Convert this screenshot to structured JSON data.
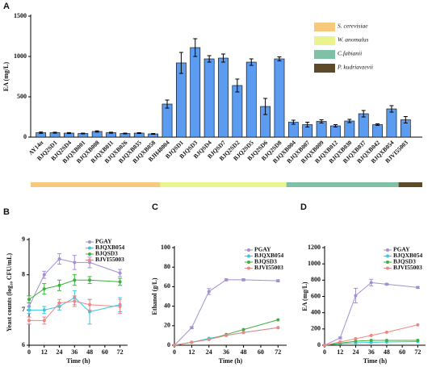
{
  "chart_data": [
    {
      "type": "bar",
      "label": "A",
      "ylabel": "EA (mg/L)",
      "color": "#5b9bf0",
      "categories": [
        "AY14α",
        "BJQ2SD1",
        "BJQ2SD4",
        "BJQXB001",
        "BJQXB008",
        "BJQXB011",
        "BJQXB026",
        "BJQXB035",
        "BJQXB058",
        "BJH48004",
        "BJQSD1",
        "BJQSD3",
        "BJQSD4",
        "BJQSD7",
        "BJQ2SD2",
        "BJQ2SD5",
        "BJQ2SD6",
        "BJQ2SD8",
        "BJQXB004",
        "BJQXB007",
        "BJQXB009",
        "BJQXB012",
        "BJQXB030",
        "BJQXB037",
        "BJQXB042",
        "BJQXB054",
        "BJVI55003"
      ],
      "values": [
        55,
        55,
        50,
        45,
        70,
        55,
        45,
        50,
        40,
        410,
        920,
        1110,
        970,
        980,
        640,
        930,
        380,
        970,
        185,
        155,
        195,
        140,
        200,
        290,
        155,
        350,
        215
      ],
      "errors": [
        8,
        6,
        6,
        5,
        8,
        6,
        5,
        5,
        5,
        50,
        130,
        110,
        40,
        50,
        80,
        40,
        100,
        25,
        25,
        30,
        20,
        15,
        20,
        40,
        10,
        40,
        40
      ],
      "ylim": [
        0,
        1500
      ],
      "yticks": [
        0,
        500,
        1000,
        1500
      ],
      "groups": [
        {
          "name": "S. cerevisiae",
          "color": "#f7c97c",
          "count": 9
        },
        {
          "name": "W. anomalus",
          "color": "#eaf48e",
          "count": 9
        },
        {
          "name": "C.fabianii",
          "color": "#7fc0a6",
          "count": 8
        },
        {
          "name": "P. kudriavzevii",
          "color": "#5c4a28",
          "count": 1
        }
      ]
    },
    {
      "type": "line",
      "label": "B",
      "ylabel": "Yeast counts (log₁₀ CFU/mL)",
      "xlabel": "Time (h)",
      "x": [
        0,
        12,
        24,
        36,
        48,
        72
      ],
      "xlim": [
        0,
        78
      ],
      "xticks": [
        0,
        12,
        24,
        36,
        48,
        60,
        72
      ],
      "ylim": [
        6,
        9
      ],
      "yticks": [
        6,
        7,
        8,
        9
      ],
      "series": [
        {
          "name": "PGAY",
          "color": "#a48fd2",
          "values": [
            7.1,
            8.0,
            8.45,
            8.35,
            8.35,
            8.05
          ],
          "errors": [
            0.1,
            0.1,
            0.15,
            0.2,
            0.15,
            0.1
          ]
        },
        {
          "name": "BJQXB054",
          "color": "#3cc6e2",
          "values": [
            7.0,
            7.0,
            7.1,
            7.35,
            6.95,
            7.15
          ],
          "errors": [
            0.1,
            0.1,
            0.1,
            0.2,
            0.35,
            0.2
          ]
        },
        {
          "name": "BJQSD3",
          "color": "#3bb33b",
          "values": [
            7.3,
            7.6,
            7.7,
            7.85,
            7.85,
            7.8
          ],
          "errors": [
            0.1,
            0.15,
            0.15,
            0.15,
            0.1,
            0.1
          ]
        },
        {
          "name": "BJVI55003",
          "color": "#f08585",
          "values": [
            6.7,
            6.7,
            7.2,
            7.25,
            7.15,
            7.1
          ],
          "errors": [
            0.1,
            0.1,
            0.1,
            0.15,
            0.15,
            0.2
          ]
        }
      ]
    },
    {
      "type": "line",
      "label": "C",
      "ylabel": "Ethanol (g/L)",
      "xlabel": "Time (h)",
      "x": [
        0,
        12,
        24,
        36,
        48,
        72
      ],
      "xlim": [
        0,
        78
      ],
      "xticks": [
        0,
        12,
        24,
        36,
        48,
        60,
        72
      ],
      "ylim": [
        0,
        100
      ],
      "yticks": [
        0,
        20,
        40,
        60,
        80,
        100
      ],
      "series": [
        {
          "name": "PGAY",
          "color": "#a48fd2",
          "values": [
            0,
            18,
            55,
            67,
            67,
            66
          ],
          "errors": [
            0,
            1,
            3,
            1,
            1,
            1
          ]
        },
        {
          "name": "BJQXB054",
          "color": "#3cc6e2",
          "values": [
            0,
            3,
            7,
            10,
            13,
            18
          ],
          "errors": [
            0,
            0,
            0,
            0,
            0,
            0
          ]
        },
        {
          "name": "BJQSD3",
          "color": "#3bb33b",
          "values": [
            0,
            3,
            6,
            11,
            16,
            26
          ],
          "errors": [
            0,
            0,
            0,
            0,
            0,
            0
          ]
        },
        {
          "name": "BJVI55003",
          "color": "#f08585",
          "values": [
            0,
            3,
            6,
            10,
            13,
            18
          ],
          "errors": [
            0,
            0,
            0,
            0,
            0,
            0
          ]
        }
      ]
    },
    {
      "type": "line",
      "label": "D",
      "ylabel": "EA (mg/L)",
      "xlabel": "Time (h)",
      "x": [
        0,
        12,
        24,
        36,
        48,
        72
      ],
      "xlim": [
        0,
        78
      ],
      "xticks": [
        0,
        12,
        24,
        36,
        48,
        60,
        72
      ],
      "ylim": [
        0,
        1200
      ],
      "yticks": [
        0,
        200,
        400,
        600,
        800,
        1000,
        1200
      ],
      "series": [
        {
          "name": "PGAY",
          "color": "#a48fd2",
          "values": [
            0,
            90,
            610,
            770,
            750,
            710
          ],
          "errors": [
            0,
            10,
            90,
            40,
            10,
            10
          ]
        },
        {
          "name": "BJQXB054",
          "color": "#3cc6e2",
          "values": [
            0,
            20,
            30,
            35,
            40,
            45
          ],
          "errors": [
            0,
            0,
            0,
            0,
            0,
            0
          ]
        },
        {
          "name": "BJQSD3",
          "color": "#3bb33b",
          "values": [
            0,
            25,
            50,
            60,
            60,
            60
          ],
          "errors": [
            0,
            0,
            0,
            0,
            0,
            0
          ]
        },
        {
          "name": "BJVI55003",
          "color": "#f08585",
          "values": [
            0,
            40,
            80,
            120,
            160,
            250
          ],
          "errors": [
            0,
            0,
            0,
            0,
            0,
            0
          ]
        }
      ]
    }
  ]
}
